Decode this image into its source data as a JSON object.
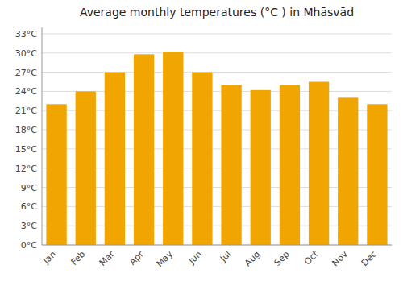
{
  "chart_data": {
    "type": "bar",
    "title": "Average monthly temperatures (°C ) in Mhāsvād",
    "categories": [
      "Jan",
      "Feb",
      "Mar",
      "Apr",
      "May",
      "Jun",
      "Jul",
      "Aug",
      "Sep",
      "Oct",
      "Nov",
      "Dec"
    ],
    "values": [
      22,
      24,
      27,
      29.8,
      30.2,
      27,
      25,
      24.2,
      25,
      25.5,
      23,
      22
    ],
    "color": "#F0A500",
    "ylim": [
      0,
      34
    ],
    "yticks": [
      {
        "value": 0,
        "label": "0°C"
      },
      {
        "value": 3,
        "label": "3°C"
      },
      {
        "value": 6,
        "label": "6°C"
      },
      {
        "value": 9,
        "label": "9°C"
      },
      {
        "value": 12,
        "label": "12°C"
      },
      {
        "value": 15,
        "label": "15°C"
      },
      {
        "value": 18,
        "label": "18°C"
      },
      {
        "value": 21,
        "label": "21°C"
      },
      {
        "value": 24,
        "label": "24°C"
      },
      {
        "value": 27,
        "label": "27°C"
      },
      {
        "value": 30,
        "label": "30°C"
      },
      {
        "value": 33,
        "label": "33°C"
      }
    ],
    "grid": true
  }
}
